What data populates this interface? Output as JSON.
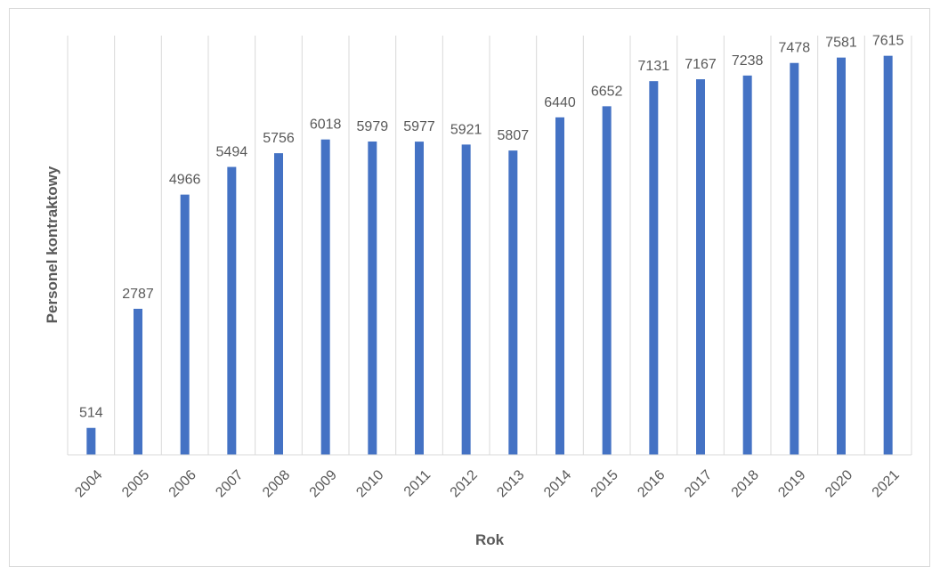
{
  "chart_data": {
    "type": "bar",
    "title": "",
    "xlabel": "Rok",
    "ylabel": "Personel kontraktowy",
    "categories": [
      "2004",
      "2005",
      "2006",
      "2007",
      "2008",
      "2009",
      "2010",
      "2011",
      "2012",
      "2013",
      "2014",
      "2015",
      "2016",
      "2017",
      "2018",
      "2019",
      "2020",
      "2021"
    ],
    "series": [
      {
        "values": [
          514,
          2787,
          4966,
          5494,
          5756,
          6018,
          5979,
          5977,
          5921,
          5807,
          6440,
          6652,
          7131,
          7167,
          7238,
          7478,
          7581,
          7615
        ],
        "color": "#4472c4"
      }
    ],
    "ylim": [
      0,
      8000
    ],
    "grid": "vertical",
    "data_labels": true,
    "legend": "none"
  }
}
